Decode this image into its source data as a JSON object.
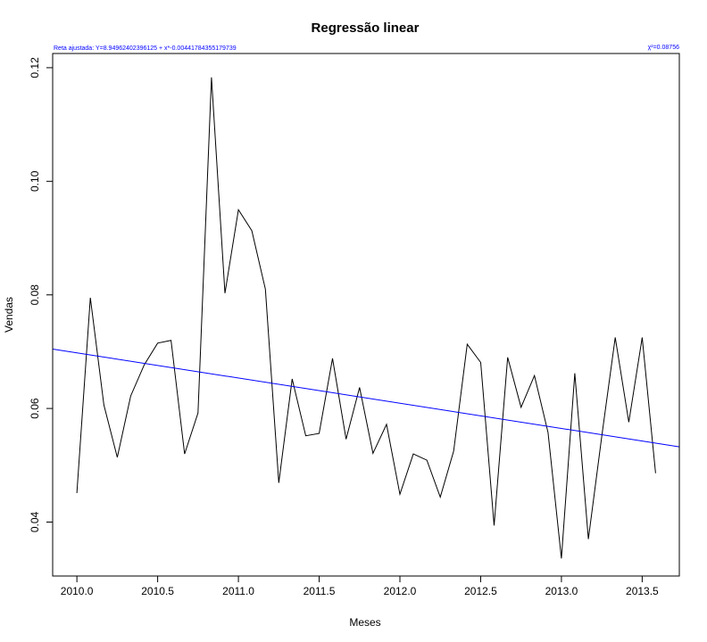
{
  "chart_data": {
    "type": "line",
    "title": "Regressão linear",
    "xlabel": "Meses",
    "ylabel": "Vendas",
    "xlim": [
      2009.85,
      2013.73
    ],
    "ylim": [
      0.0305,
      0.1225
    ],
    "x_ticks": [
      2010.0,
      2010.5,
      2011.0,
      2011.5,
      2012.0,
      2012.5,
      2013.0,
      2013.5
    ],
    "x_tick_labels": [
      "2010.0",
      "2010.5",
      "2011.0",
      "2011.5",
      "2012.0",
      "2012.5",
      "2013.0",
      "2013.5"
    ],
    "y_ticks": [
      0.04,
      0.06,
      0.08,
      0.1,
      0.12
    ],
    "y_tick_labels": [
      "0.04",
      "0.06",
      "0.08",
      "0.10",
      "0.12"
    ],
    "grid": false,
    "annotations": {
      "fit_equation": "Reta ajustada: Y=8.94962402396125 + x*-0.00441784355179739",
      "chi_squared": "χ²=0.08756"
    },
    "series": [
      {
        "values": [
          [
            2010.0,
            0.0451
          ],
          [
            2010.083,
            0.0795
          ],
          [
            2010.167,
            0.0606
          ],
          [
            2010.25,
            0.0514
          ],
          [
            2010.333,
            0.0622
          ],
          [
            2010.417,
            0.0677
          ],
          [
            2010.5,
            0.0715
          ],
          [
            2010.583,
            0.072
          ],
          [
            2010.667,
            0.052
          ],
          [
            2010.75,
            0.0592
          ],
          [
            2010.833,
            0.1183
          ],
          [
            2010.917,
            0.0803
          ],
          [
            2011.0,
            0.095
          ],
          [
            2011.083,
            0.0913
          ],
          [
            2011.167,
            0.081
          ],
          [
            2011.25,
            0.0469
          ],
          [
            2011.333,
            0.0652
          ],
          [
            2011.417,
            0.0552
          ],
          [
            2011.5,
            0.0556
          ],
          [
            2011.583,
            0.0688
          ],
          [
            2011.667,
            0.0546
          ],
          [
            2011.75,
            0.0637
          ],
          [
            2011.833,
            0.0521
          ],
          [
            2011.917,
            0.0572
          ],
          [
            2012.0,
            0.0449
          ],
          [
            2012.083,
            0.052
          ],
          [
            2012.167,
            0.0509
          ],
          [
            2012.25,
            0.0444
          ],
          [
            2012.333,
            0.0525
          ],
          [
            2012.417,
            0.0713
          ],
          [
            2012.5,
            0.0681
          ],
          [
            2012.583,
            0.0394
          ],
          [
            2012.667,
            0.069
          ],
          [
            2012.75,
            0.0602
          ],
          [
            2012.833,
            0.0658
          ],
          [
            2012.917,
            0.0558
          ],
          [
            2013.0,
            0.0336
          ],
          [
            2013.083,
            0.0662
          ],
          [
            2013.167,
            0.037
          ],
          [
            2013.25,
            0.0552
          ],
          [
            2013.333,
            0.0725
          ],
          [
            2013.417,
            0.0576
          ],
          [
            2013.5,
            0.0725
          ],
          [
            2013.583,
            0.0486
          ]
        ],
        "color": "#000000"
      },
      {
        "type": "regression-line",
        "intercept": 8.94962402396125,
        "slope": -0.00441784355179739,
        "values": [
          [
            2009.85,
            0.07046
          ],
          [
            2013.73,
            0.05325
          ]
        ],
        "color": "#0000ff"
      }
    ]
  }
}
